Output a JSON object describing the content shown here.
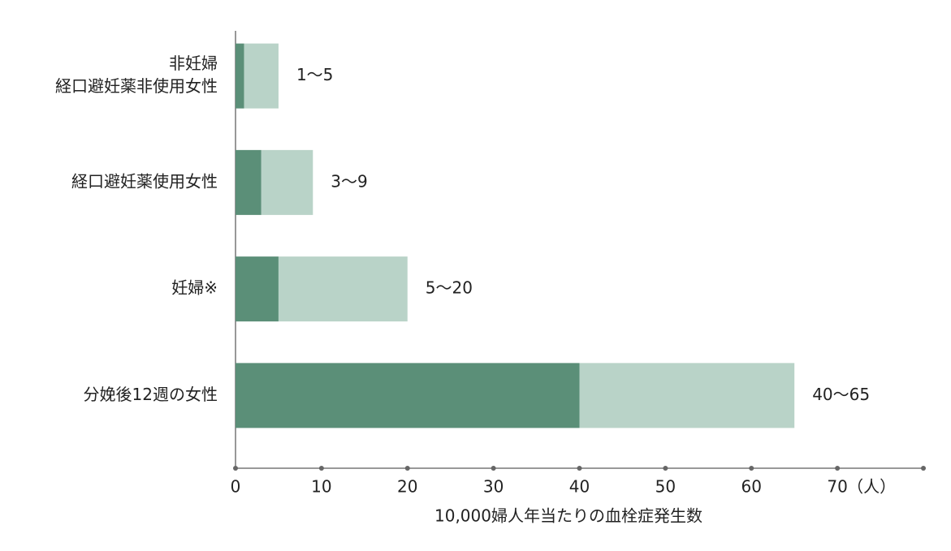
{
  "chart_data": {
    "type": "range_bar",
    "categories": [
      [
        "非妊婦",
        "経口避妊薬非使用女性"
      ],
      [
        "経口避妊薬使用女性"
      ],
      [
        "妊婦※"
      ],
      [
        "分娩後12週の女性"
      ]
    ],
    "low": [
      1,
      3,
      5,
      40
    ],
    "high": [
      5,
      9,
      20,
      65
    ],
    "value_labels": [
      "1〜5",
      "3〜9",
      "5〜20",
      "40〜65"
    ],
    "colors": {
      "low": "#5b8f78",
      "high": "#b9d3c8"
    },
    "xlim": [
      0,
      80
    ],
    "xticks": [
      0,
      10,
      20,
      30,
      40,
      50,
      60,
      70
    ],
    "x_unit": "（人）",
    "x_label": "10,000婦人年当たりの血栓症発生数"
  }
}
